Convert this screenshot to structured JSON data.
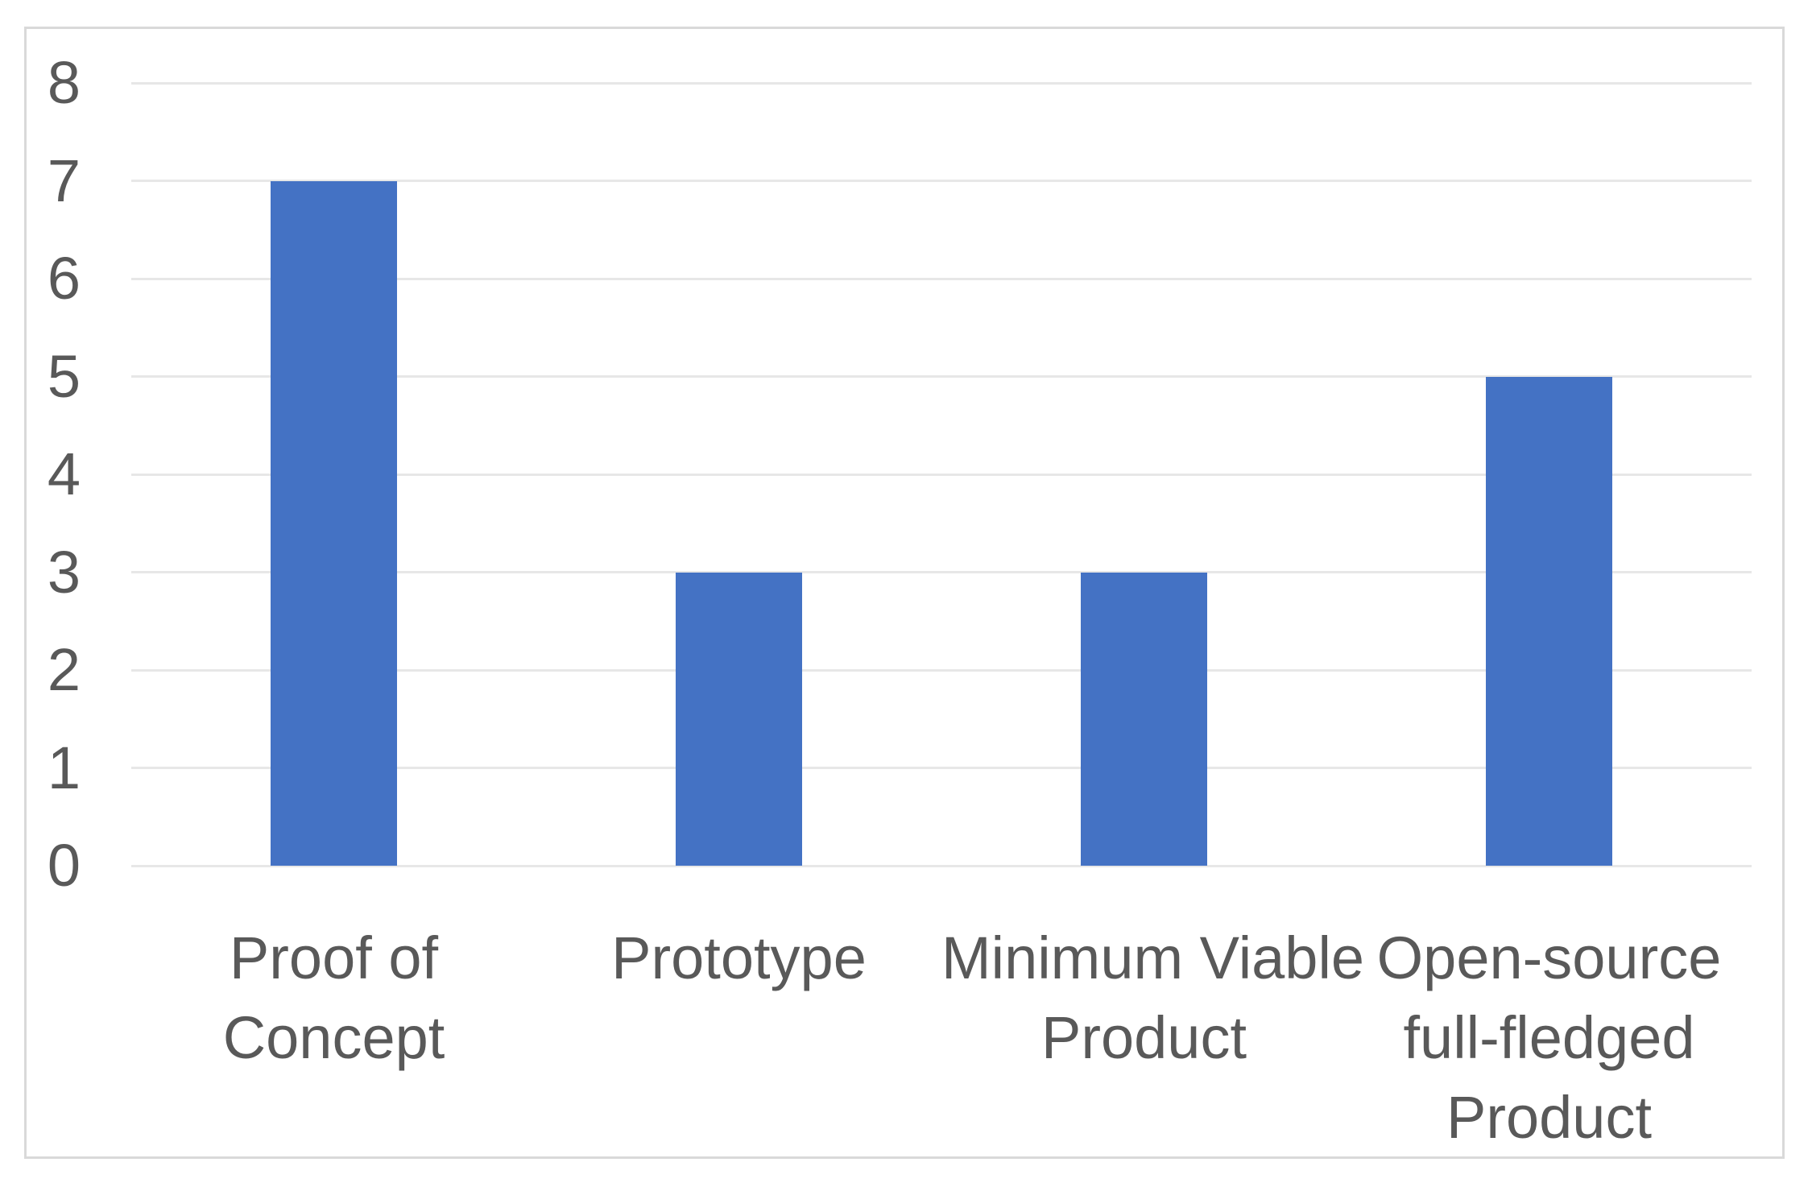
{
  "chart_data": {
    "type": "bar",
    "title": "",
    "xlabel": "",
    "ylabel": "",
    "categories": [
      "Proof of Concept",
      "Prototype",
      "Minimum Viable Product",
      "Open-source full-fledged Product"
    ],
    "category_display_lines": [
      [
        "Proof of",
        "Concept"
      ],
      [
        "Prototype"
      ],
      [
        "Minimum Viable",
        "Product"
      ],
      [
        "Open-source",
        "full-fledged",
        "Product"
      ]
    ],
    "values": [
      7,
      3,
      3,
      5
    ],
    "ylim": [
      0,
      8
    ],
    "yticks": [
      0,
      1,
      2,
      3,
      4,
      5,
      6,
      7,
      8
    ],
    "grid": true,
    "legend": false,
    "colors": {
      "bar": "#4472C4",
      "gridline": "#E7E7E7",
      "text": "#595959",
      "frame_border": "#D9D9D9",
      "background": "#FFFFFF"
    }
  }
}
